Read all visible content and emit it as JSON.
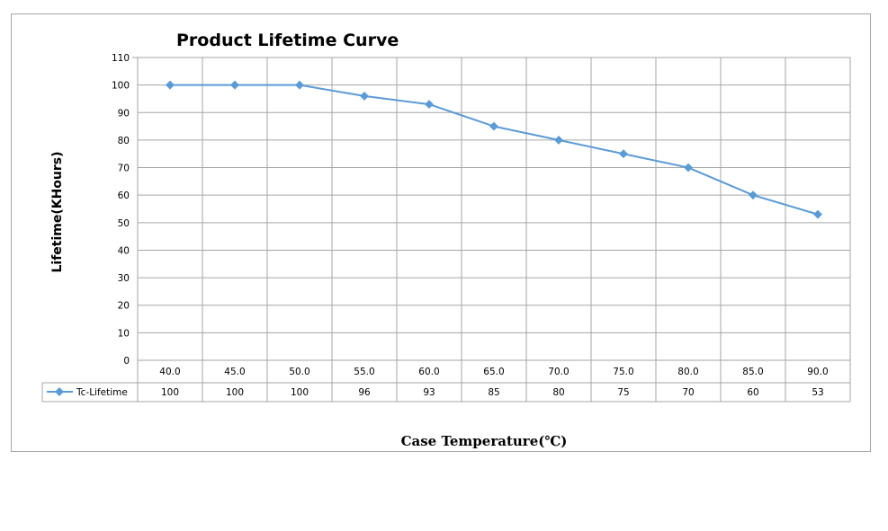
{
  "chart_data": {
    "type": "line",
    "title": "Product Lifetime Curve",
    "xlabel": "Case Temperature(℃)",
    "ylabel": "Lifetime(KHours)",
    "categories": [
      "40.0",
      "45.0",
      "50.0",
      "55.0",
      "60.0",
      "65.0",
      "70.0",
      "75.0",
      "80.0",
      "85.0",
      "90.0"
    ],
    "series": [
      {
        "name": "Tc-Lifetime",
        "values": [
          100,
          100,
          100,
          96,
          93,
          85,
          80,
          75,
          70,
          60,
          53
        ]
      }
    ],
    "value_labels": [
      "100",
      "100",
      "100",
      "96",
      "93",
      "85",
      "80",
      "75",
      "70",
      "60",
      "53"
    ],
    "ylim": [
      0,
      110
    ],
    "yticks": [
      "0",
      "10",
      "20",
      "30",
      "40",
      "50",
      "60",
      "70",
      "80",
      "90",
      "100",
      "110"
    ],
    "grid": true,
    "legend_placement": "data-table-left",
    "colors": {
      "series": "#5b9bd5",
      "grid": "#a6a6a6",
      "frame": "#a6a6a6"
    }
  }
}
